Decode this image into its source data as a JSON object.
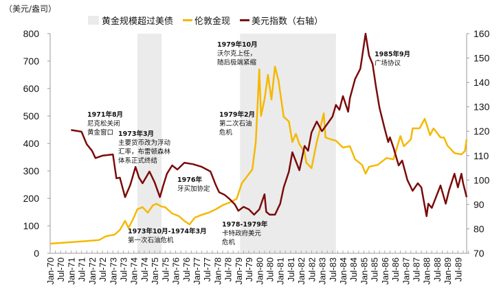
{
  "chart_data": {
    "type": "line",
    "unit_label": "（美元/盎司）",
    "legend": [
      "黄金规模超过美债",
      "伦敦金现",
      "美元指数（右轴）"
    ],
    "legend_placement": "top",
    "y_left": {
      "range": [
        0,
        800
      ],
      "ticks": [
        "0",
        "100",
        "200",
        "300",
        "400",
        "500",
        "600",
        "700",
        "800"
      ]
    },
    "y_right": {
      "range": [
        70,
        160
      ],
      "ticks": [
        "70",
        "80",
        "90",
        "100",
        "110",
        "120",
        "130",
        "140",
        "150",
        "160"
      ]
    },
    "x_range": [
      "1970-01",
      "1989-12"
    ],
    "x_ticks": [
      "Jan-70",
      "Jul-70",
      "Jan-71",
      "Jul-71",
      "Jan-72",
      "Jul-72",
      "Jan-73",
      "Jul-73",
      "Jan-74",
      "Jul-74",
      "Jan-75",
      "Jul-75",
      "Jan-76",
      "Jul-76",
      "Jan-77",
      "Jul-77",
      "Jan-78",
      "Jul-78",
      "Jan-79",
      "Jul-79",
      "Jan-80",
      "Jul-80",
      "Jan-81",
      "Jul-81",
      "Jan-82",
      "Jul-82",
      "Jan-83",
      "Jul-83",
      "Jan-84",
      "Jul-84",
      "Jan-85",
      "Jul-85",
      "Jan-86",
      "Jul-86",
      "Jan-87",
      "Jul-87",
      "Jan-88",
      "Jul-88",
      "Jan-89",
      "Jul-89"
    ],
    "grid": false,
    "shaded_periods": [
      {
        "name": "黄金规模超过美债",
        "from": "1974-03",
        "to": "1975-05"
      },
      {
        "name": "黄金规模超过美债",
        "from": "1979-02",
        "to": "1983-09"
      }
    ],
    "series": [
      {
        "name": "伦敦金现",
        "axis": "left",
        "color": "#f5b800",
        "points": [
          [
            "1970-01",
            35
          ],
          [
            "1970-12",
            40
          ],
          [
            "1971-09",
            44
          ],
          [
            "1972-05",
            48
          ],
          [
            "1972-09",
            62
          ],
          [
            "1973-02",
            68
          ],
          [
            "1973-05",
            85
          ],
          [
            "1973-08",
            118
          ],
          [
            "1973-10",
            92
          ],
          [
            "1974-01",
            130
          ],
          [
            "1974-03",
            160
          ],
          [
            "1974-06",
            168
          ],
          [
            "1974-09",
            148
          ],
          [
            "1974-12",
            175
          ],
          [
            "1975-02",
            180
          ],
          [
            "1975-05",
            170
          ],
          [
            "1975-07",
            168
          ],
          [
            "1975-11",
            145
          ],
          [
            "1976-03",
            135
          ],
          [
            "1976-06",
            118
          ],
          [
            "1976-09",
            105
          ],
          [
            "1976-12",
            130
          ],
          [
            "1977-04",
            140
          ],
          [
            "1977-08",
            148
          ],
          [
            "1977-12",
            160
          ],
          [
            "1978-04",
            175
          ],
          [
            "1978-08",
            185
          ],
          [
            "1978-12",
            198
          ],
          [
            "1979-03",
            255
          ],
          [
            "1979-06",
            280
          ],
          [
            "1979-09",
            305
          ],
          [
            "1979-11",
            405
          ],
          [
            "1980-01",
            670
          ],
          [
            "1980-02",
            500
          ],
          [
            "1980-04",
            560
          ],
          [
            "1980-06",
            650
          ],
          [
            "1980-08",
            560
          ],
          [
            "1980-10",
            680
          ],
          [
            "1980-12",
            630
          ],
          [
            "1981-03",
            497
          ],
          [
            "1981-06",
            480
          ],
          [
            "1981-08",
            405
          ],
          [
            "1981-10",
            435
          ],
          [
            "1981-12",
            398
          ],
          [
            "1982-03",
            368
          ],
          [
            "1982-04",
            330
          ],
          [
            "1982-07",
            310
          ],
          [
            "1982-10",
            405
          ],
          [
            "1982-12",
            455
          ],
          [
            "1983-02",
            510
          ],
          [
            "1983-03",
            422
          ],
          [
            "1983-06",
            415
          ],
          [
            "1983-09",
            410
          ],
          [
            "1984-01",
            385
          ],
          [
            "1984-05",
            390
          ],
          [
            "1984-08",
            342
          ],
          [
            "1984-12",
            322
          ],
          [
            "1985-02",
            290
          ],
          [
            "1985-04",
            315
          ],
          [
            "1985-09",
            322
          ],
          [
            "1986-02",
            347
          ],
          [
            "1986-06",
            342
          ],
          [
            "1986-10",
            427
          ],
          [
            "1986-12",
            390
          ],
          [
            "1987-04",
            415
          ],
          [
            "1987-05",
            455
          ],
          [
            "1987-09",
            455
          ],
          [
            "1987-12",
            490
          ],
          [
            "1988-03",
            430
          ],
          [
            "1988-05",
            455
          ],
          [
            "1988-09",
            422
          ],
          [
            "1988-11",
            422
          ],
          [
            "1989-01",
            392
          ],
          [
            "1989-05",
            365
          ],
          [
            "1989-09",
            360
          ],
          [
            "1989-11",
            372
          ],
          [
            "1989-12",
            415
          ]
        ]
      },
      {
        "name": "美元指数（右轴）",
        "axis": "right",
        "color": "#7a0a0a",
        "points": [
          [
            "1971-01",
            120.5
          ],
          [
            "1971-07",
            119.8
          ],
          [
            "1971-10",
            114.7
          ],
          [
            "1972-01",
            112
          ],
          [
            "1972-03",
            109
          ],
          [
            "1972-07",
            110
          ],
          [
            "1973-01",
            110.5
          ],
          [
            "1973-03",
            100.7
          ],
          [
            "1973-05",
            101
          ],
          [
            "1973-08",
            93
          ],
          [
            "1973-11",
            98
          ],
          [
            "1974-02",
            105.4
          ],
          [
            "1974-04",
            101
          ],
          [
            "1974-06",
            98.7
          ],
          [
            "1974-10",
            103.5
          ],
          [
            "1975-01",
            99
          ],
          [
            "1975-04",
            93
          ],
          [
            "1975-06",
            98
          ],
          [
            "1975-08",
            102.6
          ],
          [
            "1975-11",
            106
          ],
          [
            "1976-02",
            104.3
          ],
          [
            "1976-06",
            107.1
          ],
          [
            "1976-11",
            106.5
          ],
          [
            "1977-04",
            105.4
          ],
          [
            "1977-09",
            103.5
          ],
          [
            "1977-12",
            98
          ],
          [
            "1978-02",
            95
          ],
          [
            "1978-05",
            94
          ],
          [
            "1978-08",
            92.2
          ],
          [
            "1978-11",
            90
          ],
          [
            "1979-01",
            87.4
          ],
          [
            "1979-04",
            89
          ],
          [
            "1979-07",
            88
          ],
          [
            "1979-10",
            85.8
          ],
          [
            "1980-01",
            88
          ],
          [
            "1980-04",
            94.2
          ],
          [
            "1980-05",
            87
          ],
          [
            "1980-07",
            85.8
          ],
          [
            "1980-10",
            85.8
          ],
          [
            "1981-01",
            90.3
          ],
          [
            "1981-03",
            97
          ],
          [
            "1981-06",
            103.5
          ],
          [
            "1981-08",
            111.4
          ],
          [
            "1981-12",
            104
          ],
          [
            "1982-03",
            114
          ],
          [
            "1982-05",
            112
          ],
          [
            "1982-07",
            119.5
          ],
          [
            "1982-10",
            124
          ],
          [
            "1983-01",
            120
          ],
          [
            "1983-04",
            123
          ],
          [
            "1983-07",
            126
          ],
          [
            "1983-09",
            130.8
          ],
          [
            "1983-11",
            128.8
          ],
          [
            "1984-01",
            134.4
          ],
          [
            "1984-04",
            128
          ],
          [
            "1984-05",
            133.5
          ],
          [
            "1984-08",
            141.4
          ],
          [
            "1984-11",
            145.6
          ],
          [
            "1984-12",
            150.4
          ],
          [
            "1985-02",
            160
          ],
          [
            "1985-04",
            151
          ],
          [
            "1985-06",
            147.6
          ],
          [
            "1985-08",
            138
          ],
          [
            "1985-10",
            129.6
          ],
          [
            "1986-01",
            121
          ],
          [
            "1986-03",
            115.6
          ],
          [
            "1986-04",
            117.5
          ],
          [
            "1986-06",
            113.3
          ],
          [
            "1986-09",
            106
          ],
          [
            "1986-11",
            108
          ],
          [
            "1987-02",
            100
          ],
          [
            "1987-05",
            95.6
          ],
          [
            "1987-08",
            98.7
          ],
          [
            "1987-10",
            97
          ],
          [
            "1988-01",
            85.2
          ],
          [
            "1988-02",
            90.3
          ],
          [
            "1988-04",
            88.6
          ],
          [
            "1988-09",
            97.8
          ],
          [
            "1988-12",
            90.3
          ],
          [
            "1989-02",
            96
          ],
          [
            "1989-05",
            102.6
          ],
          [
            "1989-07",
            97
          ],
          [
            "1989-09",
            102.6
          ],
          [
            "1989-10",
            98.7
          ],
          [
            "1989-12",
            93
          ]
        ]
      }
    ],
    "annotations": [
      {
        "title": "1971年8月",
        "lines": [
          "尼克松关闭",
          "黄金窗口"
        ]
      },
      {
        "title": "1973年3月",
        "lines": [
          "主要货币改为浮动",
          "汇率，布雷顿森林",
          "体系正式终结"
        ]
      },
      {
        "title": "1976年",
        "lines": [
          "牙买加协定"
        ]
      },
      {
        "title": "1973年10月-1974年3月",
        "lines": [
          "第一次石油危机"
        ]
      },
      {
        "title": "1979年10月",
        "lines": [
          "沃尔克上任，",
          "随后极端紧缩"
        ]
      },
      {
        "title": "1979年2月",
        "lines": [
          "第二次石油",
          "危机"
        ]
      },
      {
        "title": "1978-1979年",
        "lines": [
          "卡特政府美元",
          "危机"
        ]
      },
      {
        "title": "1985年9月",
        "lines": [
          "广场协议"
        ]
      }
    ]
  }
}
